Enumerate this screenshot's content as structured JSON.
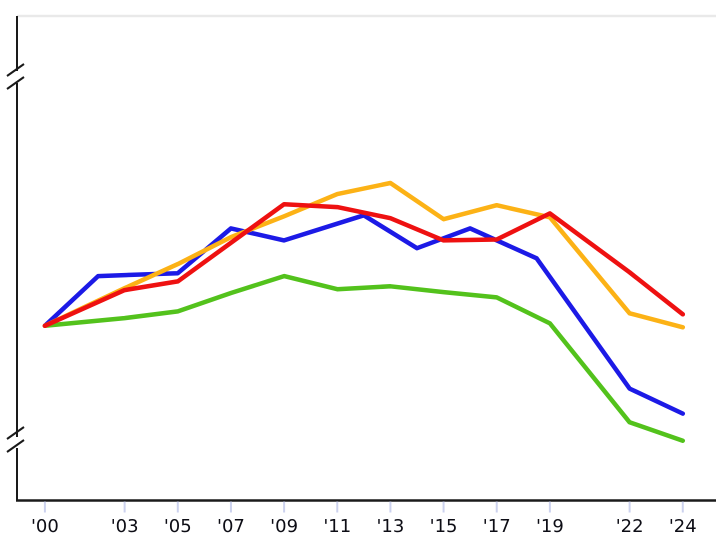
{
  "chart_data": {
    "type": "line",
    "title": "",
    "xlabel": "",
    "ylabel": "",
    "grid": false,
    "legend": "none",
    "y_axis_labeled": false,
    "y_axis_break_marks": 2,
    "y_units": "relative index (y-axis shown without numeric labels; 0 = bottom axis, 100 = top border)",
    "x_range": [
      1998.95,
      2025.25
    ],
    "y_range": [
      0,
      100
    ],
    "x_ticks": [
      {
        "year": 2000,
        "label": "'00"
      },
      {
        "year": 2003,
        "label": "'03"
      },
      {
        "year": 2005,
        "label": "'05"
      },
      {
        "year": 2007,
        "label": "'07"
      },
      {
        "year": 2009,
        "label": "'09"
      },
      {
        "year": 2011,
        "label": "'11"
      },
      {
        "year": 2013,
        "label": "'13"
      },
      {
        "year": 2015,
        "label": "'15"
      },
      {
        "year": 2017,
        "label": "'17"
      },
      {
        "year": 2019,
        "label": "'19"
      },
      {
        "year": 2022,
        "label": "'22"
      },
      {
        "year": 2024,
        "label": "'24"
      }
    ],
    "series": [
      {
        "id": "green",
        "color": "#53c21c",
        "points": [
          [
            2000,
            36.2
          ],
          [
            2003,
            37.8
          ],
          [
            2005,
            39.2
          ],
          [
            2007,
            43.0
          ],
          [
            2009,
            46.5
          ],
          [
            2011,
            43.8
          ],
          [
            2013,
            44.4
          ],
          [
            2015,
            43.2
          ],
          [
            2017,
            42.1
          ],
          [
            2019,
            36.7
          ],
          [
            2022,
            16.2
          ],
          [
            2024,
            12.4
          ]
        ]
      },
      {
        "id": "blue",
        "color": "#1c1ae6",
        "points": [
          [
            2000,
            36.2
          ],
          [
            2002,
            46.5
          ],
          [
            2005,
            47.1
          ],
          [
            2007,
            56.4
          ],
          [
            2009,
            53.9
          ],
          [
            2012,
            59.1
          ],
          [
            2014,
            52.3
          ],
          [
            2016,
            56.4
          ],
          [
            2018.5,
            50.2
          ],
          [
            2022,
            23.2
          ],
          [
            2024,
            18.0
          ]
        ]
      },
      {
        "id": "orange",
        "color": "#fcb216",
        "points": [
          [
            2000,
            36.2
          ],
          [
            2003,
            44.0
          ],
          [
            2005,
            49.0
          ],
          [
            2007,
            54.6
          ],
          [
            2009,
            58.9
          ],
          [
            2011,
            63.5
          ],
          [
            2013,
            65.8
          ],
          [
            2015,
            58.3
          ],
          [
            2017,
            61.2
          ],
          [
            2019,
            58.7
          ],
          [
            2022,
            38.8
          ],
          [
            2024,
            35.9
          ]
        ]
      },
      {
        "id": "red",
        "color": "#ee1111",
        "points": [
          [
            2000,
            36.2
          ],
          [
            2003,
            43.6
          ],
          [
            2005,
            45.4
          ],
          [
            2009,
            61.4
          ],
          [
            2011,
            60.8
          ],
          [
            2013,
            58.5
          ],
          [
            2015,
            53.9
          ],
          [
            2017,
            54.1
          ],
          [
            2019,
            59.5
          ],
          [
            2022,
            47.3
          ],
          [
            2024,
            38.6
          ]
        ]
      }
    ]
  },
  "axes": {
    "axis_color": "#1a1a1a",
    "tick_color": "#ccd2ee",
    "tick_label_color": "#0d0d15",
    "top_border_color": "#e9e9e9",
    "background": "#ffffff",
    "line_width": 4.5
  }
}
